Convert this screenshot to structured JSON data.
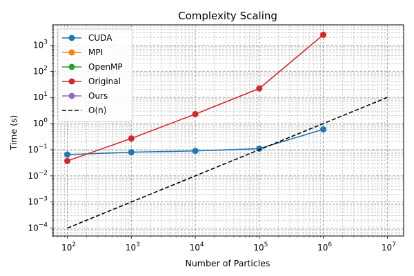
{
  "chart_data": {
    "type": "line",
    "title": "Complexity Scaling",
    "xlabel": "Number of Particles",
    "ylabel": "Time (s)",
    "xscale": "log",
    "yscale": "log",
    "xlim": [
      60,
      18000000
    ],
    "ylim": [
      5e-05,
      6000
    ],
    "grid": true,
    "legend_position": "top-left",
    "x_ticks": [
      {
        "value": 100,
        "base": "10",
        "exp": "2"
      },
      {
        "value": 1000,
        "base": "10",
        "exp": "3"
      },
      {
        "value": 10000,
        "base": "10",
        "exp": "4"
      },
      {
        "value": 100000,
        "base": "10",
        "exp": "5"
      },
      {
        "value": 1000000,
        "base": "10",
        "exp": "6"
      },
      {
        "value": 10000000,
        "base": "10",
        "exp": "7"
      }
    ],
    "y_ticks": [
      {
        "value": 0.0001,
        "base": "10",
        "exp": "−4"
      },
      {
        "value": 0.001,
        "base": "10",
        "exp": "−3"
      },
      {
        "value": 0.01,
        "base": "10",
        "exp": "−2"
      },
      {
        "value": 0.1,
        "base": "10",
        "exp": "−1"
      },
      {
        "value": 1,
        "base": "10",
        "exp": "0"
      },
      {
        "value": 10,
        "base": "10",
        "exp": "1"
      },
      {
        "value": 100,
        "base": "10",
        "exp": "2"
      },
      {
        "value": 1000,
        "base": "10",
        "exp": "3"
      }
    ],
    "series": [
      {
        "name": "CUDA",
        "color": "#1f77b4",
        "style": "solid",
        "marker": true,
        "x": [
          100,
          1000,
          10000,
          100000,
          1000000
        ],
        "y": [
          0.065,
          0.08,
          0.09,
          0.11,
          0.6
        ]
      },
      {
        "name": "MPI",
        "color": "#ff7f0e",
        "style": "solid",
        "marker": true,
        "x": [],
        "y": []
      },
      {
        "name": "OpenMP",
        "color": "#2ca02c",
        "style": "solid",
        "marker": true,
        "x": [],
        "y": []
      },
      {
        "name": "Original",
        "color": "#d62728",
        "style": "solid",
        "marker": true,
        "x": [
          100,
          1000,
          10000,
          100000,
          1000000
        ],
        "y": [
          0.037,
          0.27,
          2.3,
          22,
          2500
        ]
      },
      {
        "name": "Ours",
        "color": "#9467bd",
        "style": "solid",
        "marker": true,
        "x": [],
        "y": []
      },
      {
        "name": "O(n)",
        "color": "#000000",
        "style": "dashed",
        "marker": false,
        "x": [
          100,
          10000000
        ],
        "y": [
          0.0001,
          10
        ]
      }
    ]
  }
}
